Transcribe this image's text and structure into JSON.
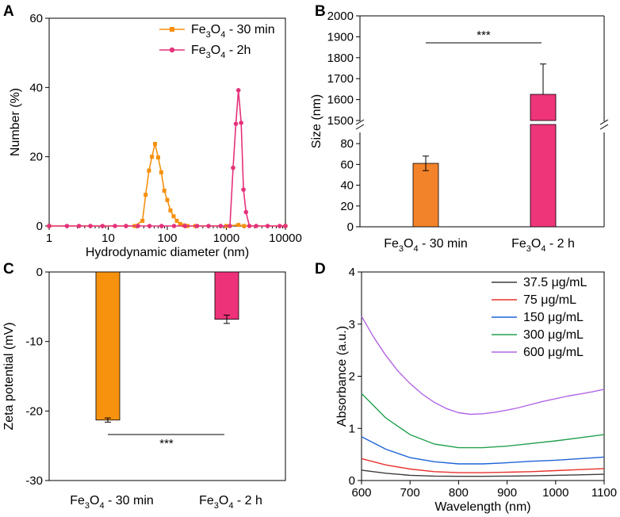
{
  "panel_letters": [
    "A",
    "B",
    "C",
    "D"
  ],
  "chart_data": [
    {
      "id": "A",
      "type": "line",
      "xscale": "log",
      "xlabel": "Hydrodynamic diameter (nm)",
      "ylabel": "Number (%)",
      "xlim": [
        1,
        10000
      ],
      "ylim": [
        0,
        60
      ],
      "xticks": [
        1,
        10,
        100,
        1000,
        10000
      ],
      "xtick_labels": [
        "1",
        "10",
        "100",
        "1000",
        "10000"
      ],
      "yticks": [
        0,
        20,
        40,
        60
      ],
      "legend_position": "top-right",
      "series": [
        {
          "name": "Fe3O4 - 30 min",
          "base": "Fe",
          "sub": "3",
          "mid": "O",
          "sub2": "4",
          "tail": " - 30 min",
          "color": "#f5900e",
          "marker": "square",
          "x": [
            1,
            28,
            38,
            43,
            49,
            55,
            62,
            70,
            79,
            89,
            100,
            113,
            128,
            145,
            165,
            190,
            220,
            300,
            1000,
            1600,
            2000,
            10000
          ],
          "y": [
            0,
            0,
            1.5,
            9,
            16,
            20,
            23.7,
            19.8,
            15.5,
            10.2,
            7.5,
            4.5,
            2.8,
            1.5,
            0.6,
            0.2,
            0,
            0,
            0,
            0.3,
            0,
            0
          ]
        },
        {
          "name": "Fe3O4 - 2h",
          "base": "Fe",
          "sub": "3",
          "mid": "O",
          "sub2": "4",
          "tail": " - 2h",
          "color": "#e5327a",
          "marker": "circle",
          "x": [
            1,
            2,
            3.2,
            5,
            8,
            13,
            20,
            32,
            50,
            80,
            130,
            200,
            320,
            500,
            800,
            1150,
            1300,
            1450,
            1600,
            1780,
            1950,
            2150,
            2450,
            3200,
            5000,
            8000,
            10000
          ],
          "y": [
            0,
            0,
            0,
            0,
            0,
            0,
            0,
            0,
            0,
            0,
            0,
            0,
            0,
            0,
            0,
            0,
            16.8,
            29.5,
            39.2,
            29.8,
            10.5,
            4,
            0,
            0,
            0,
            0,
            0
          ]
        }
      ]
    },
    {
      "id": "B",
      "type": "bar",
      "ylabel": "Size (nm)",
      "broken_axis": true,
      "ylim_lower": [
        0,
        90
      ],
      "ylim_upper": [
        1500,
        2000
      ],
      "yticks_lower": [
        0,
        20,
        40,
        60,
        80
      ],
      "yticks_upper": [
        1500,
        1600,
        1700,
        1800,
        1900,
        2000
      ],
      "categories": [
        {
          "base": "Fe",
          "sub": "3",
          "mid": "O",
          "sub2": "4",
          "tail": " - 30 min"
        },
        {
          "base": "Fe",
          "sub": "3",
          "mid": "O",
          "sub2": "4",
          "tail": " - 2 h"
        }
      ],
      "values": [
        61,
        1625
      ],
      "errors": [
        7,
        145
      ],
      "colors": [
        "#f2832a",
        "#ee357a"
      ],
      "significance": "***"
    },
    {
      "id": "C",
      "type": "bar",
      "ylabel": "Zeta potential (mV)",
      "ylim": [
        -30,
        0
      ],
      "yticks": [
        0,
        -10,
        -20,
        -30
      ],
      "categories": [
        {
          "base": "Fe",
          "sub": "3",
          "mid": "O",
          "sub2": "4",
          "tail": " - 30 min"
        },
        {
          "base": "Fe",
          "sub": "3",
          "mid": "O",
          "sub2": "4",
          "tail": " - 2 h"
        }
      ],
      "values": [
        -21.3,
        -6.8
      ],
      "errors": [
        0.3,
        0.6
      ],
      "colors": [
        "#f7920f",
        "#ee327a"
      ],
      "significance": "***"
    },
    {
      "id": "D",
      "type": "line",
      "xlabel": "Wavelength (nm)",
      "ylabel": "Absorbance (a.u.)",
      "xlim": [
        600,
        1100
      ],
      "ylim": [
        0,
        4
      ],
      "xticks": [
        600,
        700,
        800,
        900,
        1000,
        1100
      ],
      "yticks": [
        0,
        1,
        2,
        3,
        4
      ],
      "legend_position": "top-right",
      "series": [
        {
          "name": "37.5 μg/mL",
          "color": "#3c3c3c",
          "x": [
            600,
            650,
            700,
            750,
            800,
            850,
            900,
            950,
            1000,
            1050,
            1100
          ],
          "y": [
            0.2,
            0.14,
            0.1,
            0.085,
            0.08,
            0.08,
            0.085,
            0.09,
            0.1,
            0.11,
            0.12
          ]
        },
        {
          "name": "75 μg/mL",
          "color": "#e8322c",
          "x": [
            600,
            650,
            700,
            750,
            800,
            850,
            900,
            950,
            1000,
            1050,
            1100
          ],
          "y": [
            0.42,
            0.3,
            0.22,
            0.17,
            0.15,
            0.15,
            0.16,
            0.17,
            0.19,
            0.21,
            0.23
          ]
        },
        {
          "name": "150 μg/mL",
          "color": "#1e63d6",
          "x": [
            600,
            650,
            700,
            750,
            800,
            850,
            900,
            950,
            1000,
            1050,
            1100
          ],
          "y": [
            0.84,
            0.6,
            0.44,
            0.36,
            0.32,
            0.32,
            0.34,
            0.37,
            0.39,
            0.42,
            0.45
          ]
        },
        {
          "name": "300 μg/mL",
          "color": "#23a04f",
          "x": [
            600,
            650,
            700,
            750,
            800,
            850,
            900,
            950,
            1000,
            1050,
            1100
          ],
          "y": [
            1.67,
            1.2,
            0.88,
            0.7,
            0.63,
            0.63,
            0.66,
            0.71,
            0.76,
            0.82,
            0.88
          ]
        },
        {
          "name": "600 μg/mL",
          "color": "#b266e6",
          "x": [
            600,
            625,
            650,
            675,
            700,
            725,
            750,
            775,
            800,
            825,
            850,
            875,
            900,
            925,
            950,
            975,
            1000,
            1025,
            1050,
            1075,
            1100
          ],
          "y": [
            3.15,
            2.75,
            2.4,
            2.1,
            1.86,
            1.66,
            1.5,
            1.38,
            1.3,
            1.27,
            1.28,
            1.31,
            1.35,
            1.4,
            1.46,
            1.52,
            1.57,
            1.62,
            1.66,
            1.7,
            1.75
          ]
        }
      ]
    }
  ]
}
